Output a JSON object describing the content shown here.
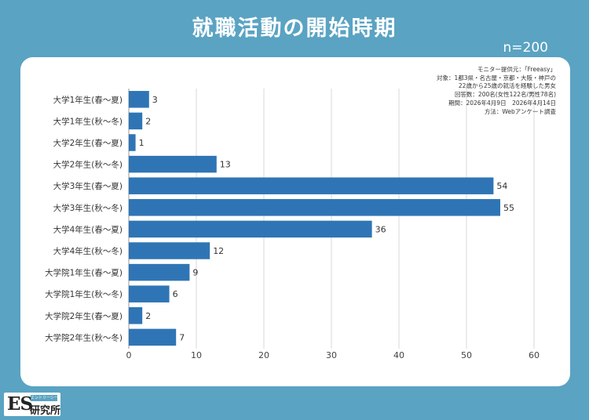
{
  "header": {
    "title": "就職活動の開始時期",
    "sample": "n=200"
  },
  "source_note": [
    "モニター提供元：「Freeasy」",
    "対象：1都3県・名古屋・京都・大阪・神戸の",
    "22歳から25歳の就活を経験した男女",
    "回答数：200名(女性122名/男性78名)",
    "期間：2026年4月9日　2026年4月14日",
    "方法：Webアンケート調査"
  ],
  "logo": {
    "es": "ES",
    "tagline": "エントリーシート",
    "name": "研究所"
  },
  "colors": {
    "background": "#5aa3c3",
    "bar": "#2f75b5",
    "grid": "#d9d9d9"
  },
  "chart_data": {
    "type": "bar",
    "orientation": "horizontal",
    "categories": [
      "大学1年生(春～夏)",
      "大学1年生(秋～冬)",
      "大学2年生(春～夏)",
      "大学2年生(秋～冬)",
      "大学3年生(春～夏)",
      "大学3年生(秋～冬)",
      "大学4年生(春～夏)",
      "大学4年生(秋～冬)",
      "大学院1年生(春～夏)",
      "大学院1年生(秋～冬)",
      "大学院2年生(春～夏)",
      "大学院2年生(秋～冬)"
    ],
    "values": [
      3,
      2,
      1,
      13,
      54,
      55,
      36,
      12,
      9,
      6,
      2,
      7
    ],
    "xlim": [
      0,
      60
    ],
    "xticks": [
      0,
      10,
      20,
      30,
      40,
      50,
      60
    ],
    "grid": true
  }
}
